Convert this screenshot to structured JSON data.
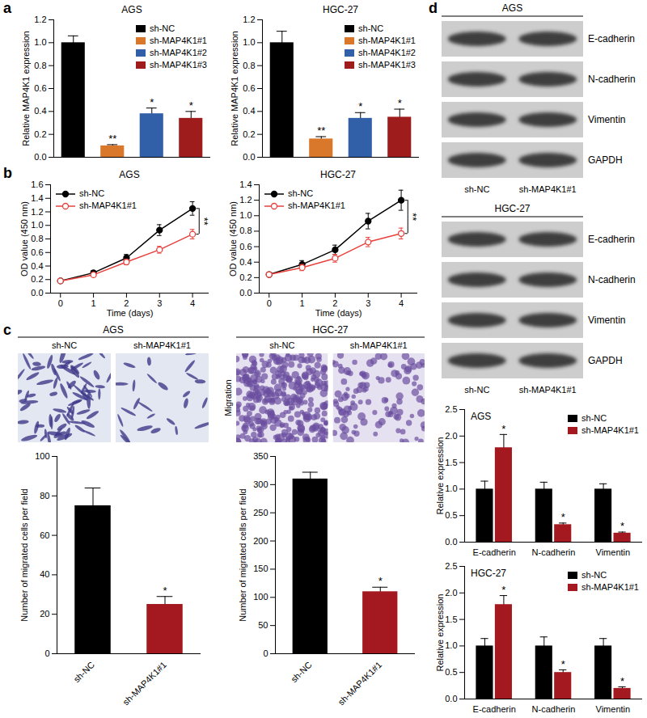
{
  "panel_labels": [
    "a",
    "b",
    "c",
    "d"
  ],
  "chart_data": [
    {
      "type": "bar",
      "title": "AGS",
      "y_label": "Relative MAP4K1 expression",
      "categories": [
        "sh-NC",
        "sh-MAP4K1#1",
        "sh-MAP4K1#2",
        "sh-MAP4K1#3"
      ],
      "values": [
        1.0,
        0.1,
        0.38,
        0.34
      ],
      "errors": [
        0.06,
        0.01,
        0.05,
        0.06
      ],
      "significance": [
        null,
        "**",
        "*",
        "*"
      ],
      "colors": [
        "#000000",
        "#d9772b",
        "#3260a8",
        "#9e1c1c"
      ],
      "ylim": [
        0,
        1.2
      ],
      "yticks": [
        {
          "value": 0,
          "label": "0.0"
        },
        0.2,
        0.4,
        0.6,
        0.8,
        {
          "value": 1,
          "label": "1.0"
        },
        1.2
      ],
      "legend": "upper right",
      "tick_labels": "y"
    },
    {
      "type": "bar",
      "title": "HGC-27",
      "y_label": "Relative MAP4K1 expression",
      "categories": [
        "sh-NC",
        "sh-MAP4K1#1",
        "sh-MAP4K1#2",
        "sh-MAP4K1#3"
      ],
      "values": [
        1.0,
        0.16,
        0.34,
        0.35
      ],
      "errors": [
        0.1,
        0.02,
        0.05,
        0.07
      ],
      "significance": [
        null,
        "**",
        "*",
        "*"
      ],
      "colors": [
        "#000000",
        "#d9772b",
        "#3260a8",
        "#9e1c1c"
      ],
      "ylim": [
        0,
        1.2
      ],
      "yticks": [
        {
          "value": 0,
          "label": "0.0"
        },
        0.2,
        0.4,
        0.6,
        0.8,
        {
          "value": 1,
          "label": "1.0"
        },
        1.2
      ],
      "legend": "upper right",
      "tick_labels": "y"
    },
    {
      "type": "line",
      "title": "AGS",
      "x_label": "Time (days)",
      "y_label": "OD value (450 nm)",
      "x": [
        0,
        1,
        2,
        3,
        4
      ],
      "series": [
        {
          "name": "sh-NC",
          "color": "#000000",
          "marker": "circle",
          "values": [
            0.18,
            0.3,
            0.52,
            0.93,
            1.25
          ],
          "errors": [
            0.01,
            0.03,
            0.05,
            0.08,
            0.1
          ]
        },
        {
          "name": "sh-MAP4K1#1",
          "color": "#e8413c",
          "marker": "open circle",
          "values": [
            0.18,
            0.27,
            0.46,
            0.64,
            0.87
          ],
          "errors": [
            0.01,
            0.02,
            0.04,
            0.05,
            0.07
          ]
        }
      ],
      "significance": "**",
      "xlim": [
        -0.3,
        4.5
      ],
      "xticks": [
        0,
        1,
        2,
        3,
        4
      ],
      "ylim": [
        0,
        1.6
      ],
      "yticks": [
        {
          "value": 0,
          "label": "0.0"
        },
        0.2,
        0.4,
        0.6,
        0.8,
        {
          "value": 1,
          "label": "1.0"
        },
        1.2,
        1.4,
        1.6
      ],
      "legend": "upper left"
    },
    {
      "type": "line",
      "title": "HGC-27",
      "x_label": "Time (days)",
      "y_label": "OD value (450 nm)",
      "x": [
        0,
        1,
        2,
        3,
        4
      ],
      "series": [
        {
          "name": "sh-NC",
          "color": "#000000",
          "marker": "circle",
          "values": [
            0.24,
            0.37,
            0.56,
            0.93,
            1.2
          ],
          "errors": [
            0.02,
            0.05,
            0.06,
            0.1,
            0.13
          ]
        },
        {
          "name": "sh-MAP4K1#1",
          "color": "#e8413c",
          "marker": "open circle",
          "values": [
            0.24,
            0.33,
            0.45,
            0.66,
            0.77
          ],
          "errors": [
            0.02,
            0.04,
            0.05,
            0.06,
            0.07
          ]
        }
      ],
      "significance": "**",
      "xlim": [
        -0.3,
        4.5
      ],
      "xticks": [
        0,
        1,
        2,
        3,
        4
      ],
      "ylim": [
        0,
        1.4
      ],
      "yticks": [
        {
          "value": 0,
          "label": "0.0"
        },
        0.2,
        0.4,
        0.6,
        0.8,
        {
          "value": 1,
          "label": "1.0"
        },
        1.2,
        1.4
      ],
      "legend": "upper left"
    },
    {
      "type": "bar",
      "y_label": "Number of migrated cells per field",
      "categories": [
        "sh-NC",
        "sh-MAP4K1#1"
      ],
      "values": [
        75,
        25
      ],
      "errors": [
        9,
        4
      ],
      "significance": [
        null,
        "*"
      ],
      "colors": [
        "#000000",
        "#a3191f"
      ],
      "ylim": [
        0,
        100
      ],
      "yticks": [
        0,
        20,
        40,
        60,
        80,
        100
      ]
    },
    {
      "type": "bar",
      "y_label": "Number of migrated cells per field",
      "categories": [
        "sh-NC",
        "sh-MAP4K1#1"
      ],
      "values": [
        310,
        110
      ],
      "errors": [
        12,
        8
      ],
      "significance": [
        null,
        "*"
      ],
      "colors": [
        "#000000",
        "#a3191f"
      ],
      "ylim": [
        0,
        350
      ],
      "yticks": [
        0,
        50,
        100,
        150,
        200,
        250,
        300,
        350
      ]
    },
    {
      "type": "bar",
      "title": "AGS",
      "y_label": "Relative expression",
      "categories": [
        "E-cadherin",
        "N-cadherin",
        "Vimentin"
      ],
      "series": [
        {
          "name": "sh-NC",
          "color": "#000000",
          "values": [
            1.0,
            1.0,
            1.0
          ],
          "errors": [
            0.15,
            0.13,
            0.1
          ]
        },
        {
          "name": "sh-MAP4K1#1",
          "color": "#a3191f",
          "values": [
            1.78,
            0.33,
            0.17
          ],
          "errors": [
            0.25,
            0.03,
            0.02
          ],
          "significance": [
            "*",
            "*",
            "*"
          ]
        }
      ],
      "ylim": [
        0,
        2.5
      ],
      "yticks": [
        {
          "value": 0,
          "label": "0.0"
        },
        0.5,
        {
          "value": 1,
          "label": "1.0"
        },
        1.5,
        {
          "value": 2,
          "label": "2.0"
        },
        2.5
      ],
      "legend": "upper right"
    },
    {
      "type": "bar",
      "title": "HGC-27",
      "y_label": "Relative expression",
      "categories": [
        "E-cadherin",
        "N-cadherin",
        "Vimentin"
      ],
      "series": [
        {
          "name": "sh-NC",
          "color": "#000000",
          "values": [
            1.0,
            1.0,
            1.0
          ],
          "errors": [
            0.14,
            0.17,
            0.14
          ]
        },
        {
          "name": "sh-MAP4K1#1",
          "color": "#a3191f",
          "values": [
            1.78,
            0.5,
            0.2
          ],
          "errors": [
            0.17,
            0.05,
            0.03
          ],
          "significance": [
            "*",
            "*",
            "*"
          ]
        }
      ],
      "ylim": [
        0,
        2.5
      ],
      "yticks": [
        {
          "value": 0,
          "label": "0.0"
        },
        0.5,
        {
          "value": 1,
          "label": "1.0"
        },
        1.5,
        {
          "value": 2,
          "label": "2.0"
        },
        2.5
      ],
      "legend": "upper right"
    }
  ],
  "migration_images": [
    {
      "title": "AGS",
      "lanes": [
        "sh-NC",
        "sh-MAP4K1#1"
      ]
    },
    {
      "title": "HGC-27",
      "lanes": [
        "sh-NC",
        "sh-MAP4K1#1"
      ],
      "side_label": "Migration"
    }
  ],
  "western_blots": [
    {
      "title": "AGS",
      "rows": [
        "E-cadherin",
        "N-cadherin",
        "Vimentin",
        "GAPDH"
      ],
      "lanes": [
        "sh-NC",
        "sh-MAP4K1#1"
      ]
    },
    {
      "title": "HGC-27",
      "rows": [
        "E-cadherin",
        "N-cadherin",
        "Vimentin",
        "GAPDH"
      ],
      "lanes": [
        "sh-NC",
        "sh-MAP4K1#1"
      ]
    }
  ]
}
